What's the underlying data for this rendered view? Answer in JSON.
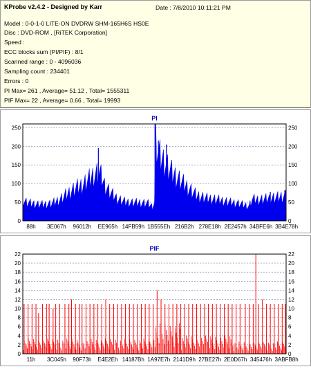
{
  "info": {
    "app": "KProbe v2.4.2 - Designed by Karr",
    "date_label": "Date :",
    "date_value": "7/8/2010 10:11:21 PM",
    "model": "Model : 0-0-1-0 LITE-ON DVDRW SHM-165H6S HS0E",
    "disc": "Disc : DVD-ROM ,  [RiTEK Corporation]",
    "speed": "Speed :",
    "ecc": "ECC blocks sum (PI/PIF) : 8/1",
    "range": "Scanned range : 0 - 4096036",
    "sampling": "Sampling count : 234401",
    "errors": "Errors : 0",
    "pi_summary": "PI Max= 261 , Average= 51.12 , Total= 1555311",
    "pif_summary": "PIF Max= 22 , Average= 0.66 , Total= 19993"
  },
  "colors": {
    "pi_fill": "#0000ee",
    "pif_bar": "#ff0000",
    "title_blue": "#0000c0",
    "grid": "#8080b0"
  },
  "chart_data": [
    {
      "type": "area",
      "title": "PI",
      "ylim": [
        0,
        260
      ],
      "yticks": [
        0,
        50,
        100,
        150,
        200,
        250
      ],
      "xtick_labels": [
        "88h",
        "3E067h",
        "96012h",
        "EE965h",
        "14FB59h",
        "1B555Eh",
        "216B2h",
        "278E18h",
        "2E2457h",
        "34BFE6h",
        "3B4E78h"
      ],
      "grid": "horizontal dashed",
      "x": [
        0,
        0.02,
        0.05,
        0.08,
        0.11,
        0.14,
        0.17,
        0.2,
        0.23,
        0.26,
        0.29,
        0.3,
        0.31,
        0.33,
        0.36,
        0.39,
        0.42,
        0.45,
        0.475,
        0.49,
        0.5,
        0.505,
        0.51,
        0.52,
        0.53,
        0.55,
        0.57,
        0.6,
        0.63,
        0.66,
        0.7,
        0.74,
        0.78,
        0.82,
        0.86,
        0.87,
        0.9,
        0.94,
        0.97,
        1.0
      ],
      "values": [
        55,
        50,
        46,
        45,
        48,
        58,
        75,
        90,
        100,
        120,
        135,
        120,
        100,
        80,
        60,
        52,
        50,
        50,
        48,
        40,
        50,
        230,
        200,
        180,
        170,
        150,
        130,
        110,
        90,
        70,
        62,
        58,
        52,
        48,
        40,
        60,
        58,
        62,
        65,
        70
      ],
      "spikes": [
        {
          "x": 0.287,
          "value": 195
        },
        {
          "x": 0.502,
          "value": 261
        },
        {
          "x": 0.515,
          "value": 215
        },
        {
          "x": 0.545,
          "value": 205
        },
        {
          "x": 0.94,
          "value": 78
        },
        {
          "x": 0.995,
          "value": 82
        }
      ]
    },
    {
      "type": "bar",
      "title": "PIF",
      "ylim": [
        0,
        22
      ],
      "yticks": [
        0,
        2,
        4,
        6,
        8,
        10,
        12,
        14,
        16,
        18,
        20,
        22
      ],
      "xtick_labels": [
        "11h",
        "3C045h",
        "90F73h",
        "E4E2Eh",
        "14187Bh",
        "1A97E7h",
        "2141D9h",
        "27BE27h",
        "2E0D67h",
        "345476h",
        "3ABFB8h"
      ],
      "grid": "horizontal dashed",
      "tall_bars": [
        {
          "x": 0.005,
          "value": 11
        },
        {
          "x": 0.02,
          "value": 11
        },
        {
          "x": 0.035,
          "value": 11
        },
        {
          "x": 0.05,
          "value": 11
        },
        {
          "x": 0.06,
          "value": 9
        },
        {
          "x": 0.075,
          "value": 11
        },
        {
          "x": 0.09,
          "value": 11
        },
        {
          "x": 0.1,
          "value": 11
        },
        {
          "x": 0.115,
          "value": 10
        },
        {
          "x": 0.125,
          "value": 11
        },
        {
          "x": 0.14,
          "value": 11
        },
        {
          "x": 0.16,
          "value": 11
        },
        {
          "x": 0.175,
          "value": 11
        },
        {
          "x": 0.185,
          "value": 12
        },
        {
          "x": 0.2,
          "value": 11
        },
        {
          "x": 0.215,
          "value": 11
        },
        {
          "x": 0.225,
          "value": 11
        },
        {
          "x": 0.24,
          "value": 11
        },
        {
          "x": 0.255,
          "value": 11
        },
        {
          "x": 0.27,
          "value": 11
        },
        {
          "x": 0.285,
          "value": 11
        },
        {
          "x": 0.3,
          "value": 11
        },
        {
          "x": 0.315,
          "value": 12
        },
        {
          "x": 0.33,
          "value": 11
        },
        {
          "x": 0.345,
          "value": 11
        },
        {
          "x": 0.36,
          "value": 11
        },
        {
          "x": 0.375,
          "value": 11
        },
        {
          "x": 0.39,
          "value": 11
        },
        {
          "x": 0.405,
          "value": 11
        },
        {
          "x": 0.42,
          "value": 11
        },
        {
          "x": 0.435,
          "value": 11
        },
        {
          "x": 0.45,
          "value": 11
        },
        {
          "x": 0.465,
          "value": 11
        },
        {
          "x": 0.48,
          "value": 11
        },
        {
          "x": 0.495,
          "value": 11
        },
        {
          "x": 0.51,
          "value": 14
        },
        {
          "x": 0.525,
          "value": 12
        },
        {
          "x": 0.54,
          "value": 11
        },
        {
          "x": 0.555,
          "value": 11
        },
        {
          "x": 0.57,
          "value": 11
        },
        {
          "x": 0.585,
          "value": 11
        },
        {
          "x": 0.6,
          "value": 11
        },
        {
          "x": 0.615,
          "value": 11
        },
        {
          "x": 0.63,
          "value": 11
        },
        {
          "x": 0.645,
          "value": 11
        },
        {
          "x": 0.66,
          "value": 11
        },
        {
          "x": 0.675,
          "value": 11
        },
        {
          "x": 0.69,
          "value": 11
        },
        {
          "x": 0.705,
          "value": 11
        },
        {
          "x": 0.72,
          "value": 11
        },
        {
          "x": 0.735,
          "value": 11
        },
        {
          "x": 0.75,
          "value": 11
        },
        {
          "x": 0.765,
          "value": 11
        },
        {
          "x": 0.78,
          "value": 11
        },
        {
          "x": 0.795,
          "value": 11
        },
        {
          "x": 0.81,
          "value": 11
        },
        {
          "x": 0.825,
          "value": 11
        },
        {
          "x": 0.845,
          "value": 11
        },
        {
          "x": 0.86,
          "value": 11
        },
        {
          "x": 0.875,
          "value": 11
        },
        {
          "x": 0.885,
          "value": 22
        },
        {
          "x": 0.895,
          "value": 11
        },
        {
          "x": 0.91,
          "value": 12
        },
        {
          "x": 0.925,
          "value": 11
        },
        {
          "x": 0.94,
          "value": 11
        },
        {
          "x": 0.955,
          "value": 11
        },
        {
          "x": 0.97,
          "value": 11
        },
        {
          "x": 0.985,
          "value": 11
        },
        {
          "x": 0.997,
          "value": 11
        }
      ],
      "dense_regions": [
        {
          "from": 0.0,
          "to": 0.5,
          "level": 2.5
        },
        {
          "from": 0.5,
          "to": 0.6,
          "level": 5
        },
        {
          "from": 0.6,
          "to": 0.8,
          "level": 3
        },
        {
          "from": 0.8,
          "to": 1.0,
          "level": 2
        }
      ]
    }
  ]
}
